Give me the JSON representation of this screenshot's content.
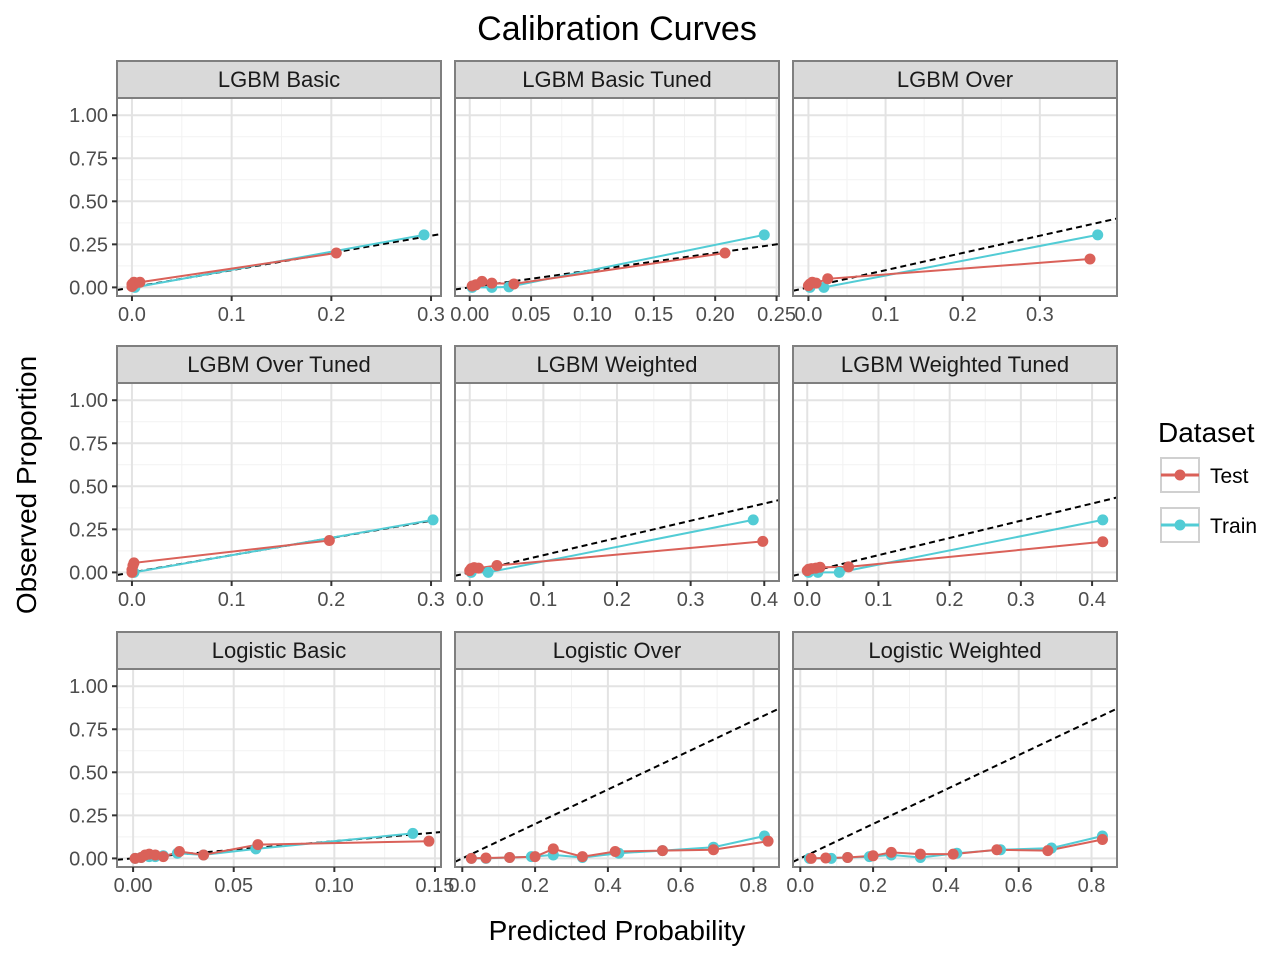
{
  "chart_data": {
    "type": "line",
    "title": "Calibration Curves",
    "xlabel": "Predicted Probability",
    "ylabel": "Observed Proportion",
    "legend": {
      "title": "Dataset",
      "placement": "right",
      "entries": [
        {
          "name": "Test",
          "color": "#DA6159"
        },
        {
          "name": "Train",
          "color": "#52CCD5"
        }
      ]
    },
    "reference_line": {
      "style": "dashed",
      "color": "#000000",
      "equation": "y = x"
    },
    "grid": true,
    "y_ticks": [
      "0.00",
      "0.25",
      "0.50",
      "0.75",
      "1.00"
    ],
    "ylim": [
      -0.05,
      1.1
    ],
    "panels": [
      {
        "name": "LGBM Basic",
        "xlim": [
          -0.015,
          0.31
        ],
        "x_ticks": [
          {
            "v": 0,
            "label": "0.0"
          },
          {
            "v": 0.1,
            "label": "0.1"
          },
          {
            "v": 0.2,
            "label": "0.2"
          },
          {
            "v": 0.3,
            "label": "0.3"
          }
        ],
        "series": [
          {
            "name": "Train",
            "x": [
              0.003,
              0.293
            ],
            "y": [
              0.0,
              0.305
            ]
          },
          {
            "name": "Test",
            "x": [
              0.0,
              0.0,
              0.002,
              0.003,
              0.008,
              0.205
            ],
            "y": [
              0.005,
              0.018,
              0.03,
              0.022,
              0.03,
              0.2
            ]
          }
        ]
      },
      {
        "name": "LGBM Basic Tuned",
        "xlim": [
          -0.012,
          0.252
        ],
        "x_ticks": [
          {
            "v": 0,
            "label": "0.00"
          },
          {
            "v": 0.05,
            "label": "0.05"
          },
          {
            "v": 0.1,
            "label": "0.10"
          },
          {
            "v": 0.15,
            "label": "0.15"
          },
          {
            "v": 0.2,
            "label": "0.20"
          },
          {
            "v": 0.25,
            "label": "0.25"
          }
        ],
        "series": [
          {
            "name": "Train",
            "x": [
              0.002,
              0.018,
              0.032,
              0.24
            ],
            "y": [
              0.0,
              0.0,
              0.003,
              0.305
            ]
          },
          {
            "name": "Test",
            "x": [
              0.002,
              0.005,
              0.01,
              0.018,
              0.036,
              0.208
            ],
            "y": [
              0.008,
              0.015,
              0.035,
              0.025,
              0.02,
              0.2
            ]
          }
        ]
      },
      {
        "name": "LGBM Over",
        "xlim": [
          -0.02,
          0.4
        ],
        "x_ticks": [
          {
            "v": 0,
            "label": "0.0"
          },
          {
            "v": 0.1,
            "label": "0.1"
          },
          {
            "v": 0.2,
            "label": "0.2"
          },
          {
            "v": 0.3,
            "label": "0.3"
          }
        ],
        "series": [
          {
            "name": "Train",
            "x": [
              0.002,
              0.02,
              0.375
            ],
            "y": [
              0.0,
              0.0,
              0.305
            ]
          },
          {
            "name": "Test",
            "x": [
              0.0,
              0.002,
              0.005,
              0.01,
              0.025,
              0.365
            ],
            "y": [
              0.01,
              0.02,
              0.03,
              0.025,
              0.05,
              0.165
            ]
          }
        ]
      },
      {
        "name": "LGBM Over Tuned",
        "xlim": [
          -0.015,
          0.31
        ],
        "x_ticks": [
          {
            "v": 0,
            "label": "0.0"
          },
          {
            "v": 0.1,
            "label": "0.1"
          },
          {
            "v": 0.2,
            "label": "0.2"
          },
          {
            "v": 0.3,
            "label": "0.3"
          }
        ],
        "series": [
          {
            "name": "Train",
            "x": [
              0.002,
              0.302
            ],
            "y": [
              0.0,
              0.305
            ]
          },
          {
            "name": "Test",
            "x": [
              0.0,
              0.0,
              0.001,
              0.002,
              0.198
            ],
            "y": [
              0.0,
              0.015,
              0.04,
              0.055,
              0.185
            ]
          }
        ]
      },
      {
        "name": "LGBM Weighted",
        "xlim": [
          -0.02,
          0.42
        ],
        "x_ticks": [
          {
            "v": 0,
            "label": "0.0"
          },
          {
            "v": 0.1,
            "label": "0.1"
          },
          {
            "v": 0.2,
            "label": "0.2"
          },
          {
            "v": 0.3,
            "label": "0.3"
          },
          {
            "v": 0.4,
            "label": "0.4"
          }
        ],
        "series": [
          {
            "name": "Train",
            "x": [
              0.002,
              0.025,
              0.385
            ],
            "y": [
              0.0,
              0.0,
              0.305
            ]
          },
          {
            "name": "Test",
            "x": [
              0.0,
              0.002,
              0.006,
              0.012,
              0.037,
              0.398
            ],
            "y": [
              0.01,
              0.022,
              0.028,
              0.025,
              0.04,
              0.18
            ]
          }
        ]
      },
      {
        "name": "LGBM Weighted Tuned",
        "xlim": [
          -0.02,
          0.435
        ],
        "x_ticks": [
          {
            "v": 0,
            "label": "0.0"
          },
          {
            "v": 0.1,
            "label": "0.1"
          },
          {
            "v": 0.2,
            "label": "0.2"
          },
          {
            "v": 0.3,
            "label": "0.3"
          },
          {
            "v": 0.4,
            "label": "0.4"
          }
        ],
        "series": [
          {
            "name": "Train",
            "x": [
              0.002,
              0.015,
              0.045,
              0.415
            ],
            "y": [
              0.0,
              0.0,
              0.0,
              0.305
            ]
          },
          {
            "name": "Test",
            "x": [
              0.0,
              0.002,
              0.006,
              0.012,
              0.018,
              0.058,
              0.415
            ],
            "y": [
              0.01,
              0.018,
              0.022,
              0.025,
              0.03,
              0.032,
              0.178
            ]
          }
        ]
      },
      {
        "name": "Logistic Basic",
        "xlim": [
          -0.008,
          0.153
        ],
        "x_ticks": [
          {
            "v": 0,
            "label": "0.00"
          },
          {
            "v": 0.05,
            "label": "0.05"
          },
          {
            "v": 0.1,
            "label": "0.10"
          },
          {
            "v": 0.15,
            "label": "0.15"
          }
        ],
        "series": [
          {
            "name": "Train",
            "x": [
              0.001,
              0.004,
              0.008,
              0.011,
              0.015,
              0.022,
              0.035,
              0.061,
              0.139
            ],
            "y": [
              0.0,
              0.005,
              0.01,
              0.01,
              0.015,
              0.03,
              0.02,
              0.055,
              0.145
            ]
          },
          {
            "name": "Test",
            "x": [
              0.001,
              0.004,
              0.006,
              0.008,
              0.011,
              0.015,
              0.023,
              0.035,
              0.062,
              0.147
            ],
            "y": [
              0.0,
              0.005,
              0.02,
              0.025,
              0.02,
              0.01,
              0.04,
              0.02,
              0.08,
              0.1
            ]
          }
        ]
      },
      {
        "name": "Logistic Over",
        "xlim": [
          -0.02,
          0.87
        ],
        "x_ticks": [
          {
            "v": 0,
            "label": "0.0"
          },
          {
            "v": 0.2,
            "label": "0.2"
          },
          {
            "v": 0.4,
            "label": "0.4"
          },
          {
            "v": 0.6,
            "label": "0.6"
          },
          {
            "v": 0.8,
            "label": "0.8"
          }
        ],
        "series": [
          {
            "name": "Train",
            "x": [
              0.025,
              0.065,
              0.13,
              0.19,
              0.25,
              0.33,
              0.43,
              0.55,
              0.69,
              0.83
            ],
            "y": [
              0.0,
              0.0,
              0.005,
              0.01,
              0.02,
              0.005,
              0.03,
              0.045,
              0.065,
              0.13
            ]
          },
          {
            "name": "Test",
            "x": [
              0.025,
              0.065,
              0.13,
              0.2,
              0.25,
              0.33,
              0.42,
              0.55,
              0.69,
              0.84
            ],
            "y": [
              0.0,
              0.002,
              0.005,
              0.01,
              0.055,
              0.01,
              0.04,
              0.045,
              0.05,
              0.1
            ]
          }
        ]
      },
      {
        "name": "Logistic Weighted",
        "xlim": [
          -0.02,
          0.87
        ],
        "x_ticks": [
          {
            "v": 0,
            "label": "0.0"
          },
          {
            "v": 0.2,
            "label": "0.2"
          },
          {
            "v": 0.4,
            "label": "0.4"
          },
          {
            "v": 0.6,
            "label": "0.6"
          },
          {
            "v": 0.8,
            "label": "0.8"
          }
        ],
        "series": [
          {
            "name": "Train",
            "x": [
              0.025,
              0.085,
              0.13,
              0.19,
              0.25,
              0.33,
              0.43,
              0.55,
              0.69,
              0.83
            ],
            "y": [
              0.0,
              0.0,
              0.005,
              0.01,
              0.02,
              0.005,
              0.03,
              0.05,
              0.06,
              0.13
            ]
          },
          {
            "name": "Test",
            "x": [
              0.03,
              0.07,
              0.13,
              0.2,
              0.25,
              0.33,
              0.42,
              0.54,
              0.68,
              0.83
            ],
            "y": [
              0.0,
              0.002,
              0.005,
              0.015,
              0.035,
              0.025,
              0.025,
              0.05,
              0.045,
              0.11
            ]
          }
        ]
      }
    ]
  }
}
